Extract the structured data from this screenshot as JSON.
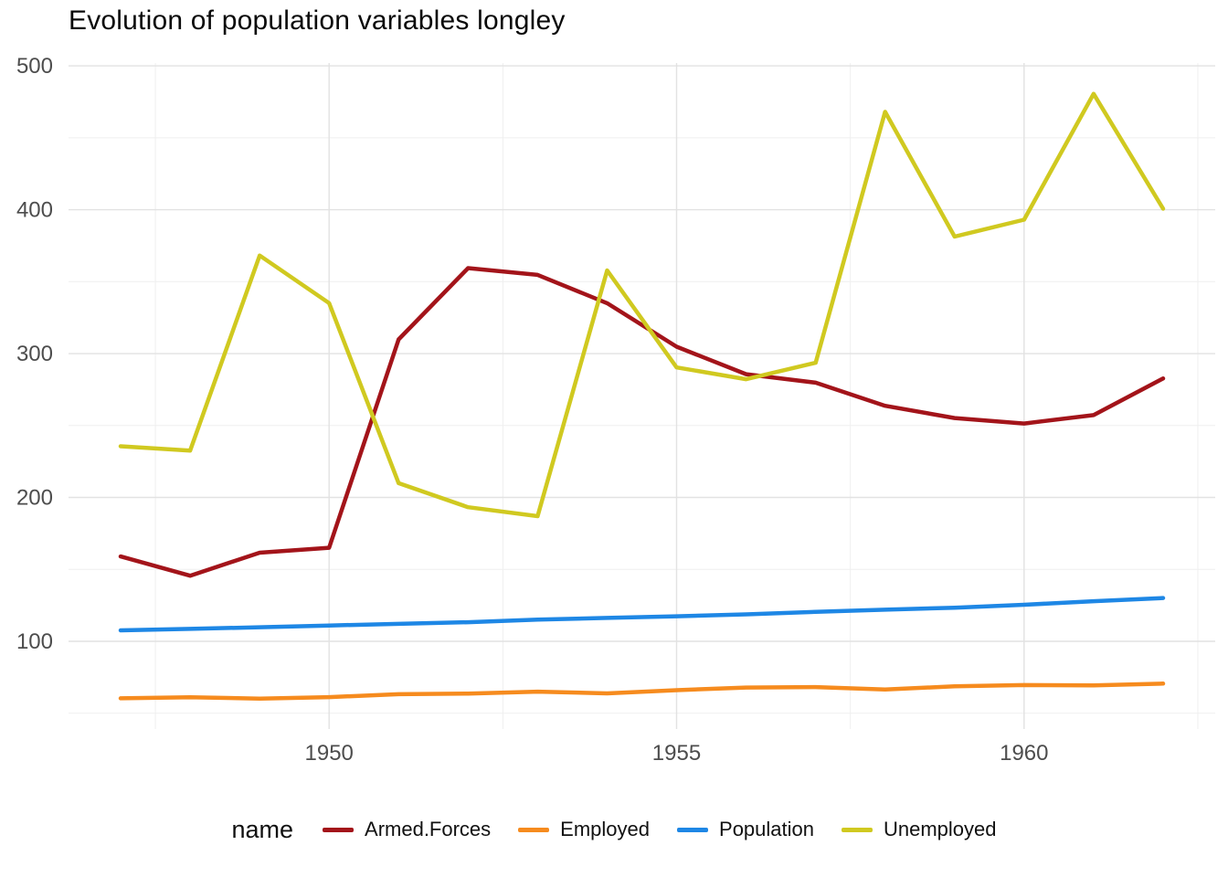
{
  "chart_data": {
    "type": "line",
    "title": "Evolution of population variables longley",
    "xlabel": "",
    "ylabel": "",
    "legend_title": "name",
    "legend_position": "bottom",
    "grid": true,
    "xlim": [
      1946.25,
      1962.75
    ],
    "ylim": [
      39,
      502
    ],
    "x_ticks": [
      1950,
      1955,
      1960
    ],
    "y_ticks": [
      100,
      200,
      300,
      400,
      500
    ],
    "x": [
      1947,
      1948,
      1949,
      1950,
      1951,
      1952,
      1953,
      1954,
      1955,
      1956,
      1957,
      1958,
      1959,
      1960,
      1961,
      1962
    ],
    "series": [
      {
        "name": "Armed.Forces",
        "color": "#A3141A",
        "values": [
          159.0,
          145.6,
          161.6,
          165.0,
          309.9,
          359.4,
          354.7,
          335.0,
          304.8,
          285.7,
          279.8,
          263.7,
          255.2,
          251.4,
          257.2,
          282.7
        ]
      },
      {
        "name": "Employed",
        "color": "#F68B1E",
        "values": [
          60.323,
          61.122,
          60.171,
          61.187,
          63.221,
          63.639,
          64.989,
          63.761,
          66.019,
          67.857,
          68.169,
          66.513,
          68.655,
          69.564,
          69.331,
          70.551
        ]
      },
      {
        "name": "Population",
        "color": "#1E87E5",
        "values": [
          107.608,
          108.632,
          109.773,
          110.929,
          112.075,
          113.27,
          115.094,
          116.219,
          117.388,
          118.734,
          120.445,
          121.95,
          123.366,
          125.368,
          127.852,
          130.081
        ]
      },
      {
        "name": "Unemployed",
        "color": "#D0C920",
        "values": [
          235.6,
          232.5,
          368.2,
          335.1,
          209.9,
          193.2,
          187.0,
          357.8,
          290.4,
          282.2,
          293.6,
          468.1,
          381.3,
          393.1,
          480.6,
          400.7
        ]
      }
    ]
  }
}
